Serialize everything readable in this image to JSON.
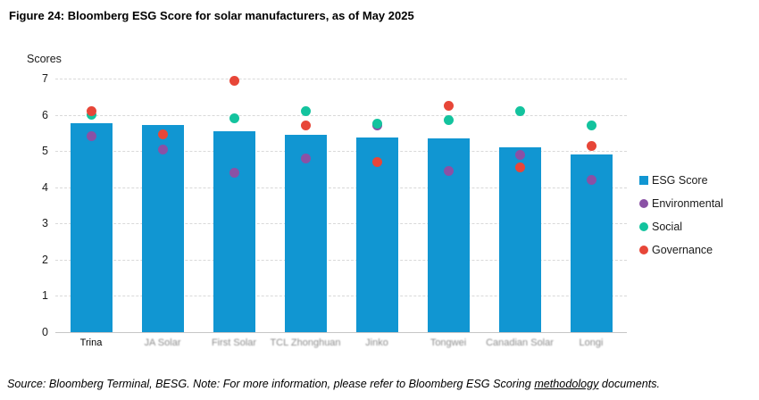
{
  "title": "Figure 24: Bloomberg ESG Score for solar manufacturers, as of May 2025",
  "footer": {
    "prefix": "Source: Bloomberg Terminal, BESG. Note: For more information, please refer to Bloomberg ESG Scoring ",
    "link": "methodology",
    "suffix": " documents."
  },
  "chart_data": {
    "type": "bar",
    "title": "Figure 24: Bloomberg ESG Score for solar manufacturers, as of May 2025",
    "ylabel": "Scores",
    "xlabel": "",
    "ylim": [
      0,
      7
    ],
    "yticks": [
      0,
      1,
      2,
      3,
      4,
      5,
      6,
      7
    ],
    "grid": "horizontal-dashed",
    "legend_position": "right",
    "categories": [
      "Trina",
      "JA Solar",
      "First Solar",
      "TCL Zhonghuan",
      "Jinko",
      "Tongwei",
      "Canadian Solar",
      "Longi"
    ],
    "bar_series": {
      "name": "ESG Score",
      "color": "#1196d2",
      "values": [
        5.78,
        5.73,
        5.55,
        5.45,
        5.38,
        5.35,
        5.1,
        4.9
      ]
    },
    "point_series": [
      {
        "name": "Environmental",
        "color": "#8a51a5",
        "values": [
          5.4,
          5.05,
          4.4,
          4.8,
          5.7,
          4.45,
          4.9,
          4.2
        ]
      },
      {
        "name": "Social",
        "color": "#13c39e",
        "values": [
          6.0,
          5.45,
          5.9,
          6.1,
          5.75,
          5.85,
          6.1,
          5.7
        ]
      },
      {
        "name": "Governance",
        "color": "#e74638",
        "values": [
          6.1,
          5.45,
          6.95,
          5.7,
          4.7,
          6.25,
          4.55,
          5.15
        ]
      }
    ],
    "legend": [
      "ESG Score",
      "Environmental",
      "Social",
      "Governance"
    ]
  }
}
